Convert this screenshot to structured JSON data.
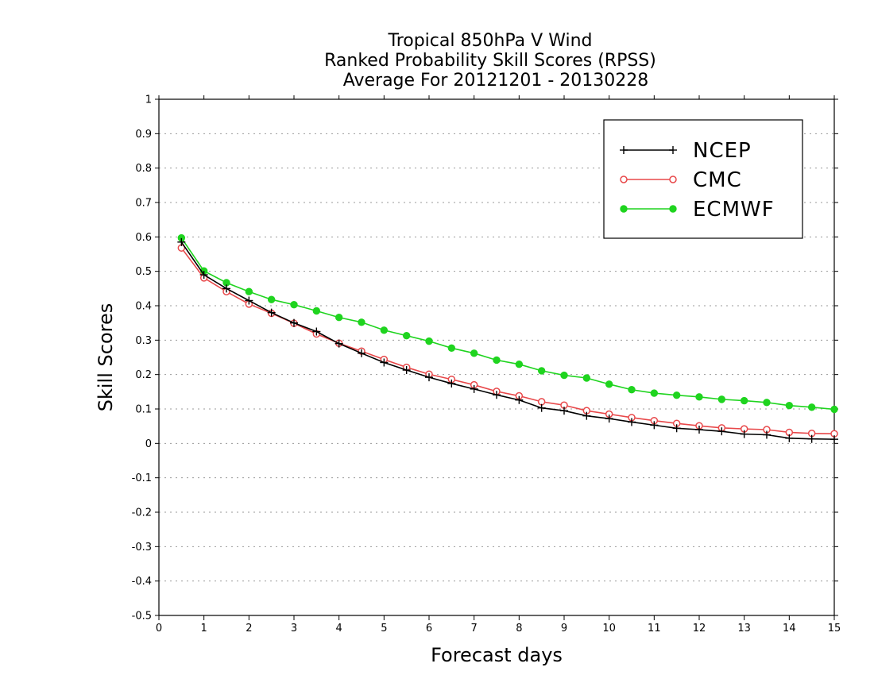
{
  "chart_data": {
    "type": "line",
    "title": [
      "Tropical 850hPa V Wind",
      "Ranked Probability Skill Scores (RPSS)",
      "Average For 20121201 - 20130228"
    ],
    "xlabel": "Forecast days",
    "ylabel": "Skill Scores",
    "xlim": [
      0,
      15
    ],
    "ylim": [
      -0.5,
      1
    ],
    "xticks": [
      0,
      1,
      2,
      3,
      4,
      5,
      6,
      7,
      8,
      9,
      10,
      11,
      12,
      13,
      14,
      15
    ],
    "yticks": [
      -0.5,
      -0.4,
      -0.3,
      -0.2,
      -0.1,
      0,
      0.1,
      0.2,
      0.3,
      0.4,
      0.5,
      0.6,
      0.7,
      0.8,
      0.9,
      1
    ],
    "ytick_labels": [
      "-0.5",
      "-0.4",
      "-0.3",
      "-0.2",
      "-0.1",
      "0",
      "0.1",
      "0.2",
      "0.3",
      "0.4",
      "0.5",
      "0.6",
      "0.7",
      "0.8",
      "0.9",
      "1"
    ],
    "grid": "horizontal dotted",
    "legend_position": "top-right",
    "x": [
      0.5,
      1,
      1.5,
      2,
      2.5,
      3,
      3.5,
      4,
      4.5,
      5,
      5.5,
      6,
      6.5,
      7,
      7.5,
      8,
      8.5,
      9,
      9.5,
      10,
      10.5,
      11,
      11.5,
      12,
      12.5,
      13,
      13.5,
      14,
      14.5,
      15
    ],
    "series": [
      {
        "name": "NCEP",
        "color": "#000000",
        "marker": "plus",
        "values": [
          0.585,
          0.49,
          0.45,
          0.415,
          0.38,
          0.35,
          0.325,
          0.29,
          0.262,
          0.235,
          0.213,
          0.192,
          0.174,
          0.158,
          0.141,
          0.126,
          0.103,
          0.095,
          0.08,
          0.072,
          0.062,
          0.053,
          0.044,
          0.04,
          0.035,
          0.027,
          0.025,
          0.015,
          0.013,
          0.012
        ]
      },
      {
        "name": "CMC",
        "color": "#e8484a",
        "marker": "open-circle",
        "values": [
          0.568,
          0.481,
          0.441,
          0.405,
          0.378,
          0.349,
          0.318,
          0.291,
          0.268,
          0.244,
          0.221,
          0.201,
          0.186,
          0.17,
          0.151,
          0.138,
          0.121,
          0.111,
          0.095,
          0.085,
          0.075,
          0.066,
          0.058,
          0.051,
          0.045,
          0.042,
          0.04,
          0.032,
          0.029,
          0.028
        ]
      },
      {
        "name": "ECMWF",
        "color": "#1fd41f",
        "marker": "filled-circle",
        "values": [
          0.597,
          0.501,
          0.467,
          0.441,
          0.418,
          0.403,
          0.385,
          0.366,
          0.352,
          0.329,
          0.313,
          0.297,
          0.277,
          0.262,
          0.242,
          0.23,
          0.211,
          0.198,
          0.19,
          0.172,
          0.156,
          0.146,
          0.14,
          0.135,
          0.128,
          0.124,
          0.119,
          0.11,
          0.105,
          0.099
        ]
      }
    ]
  }
}
